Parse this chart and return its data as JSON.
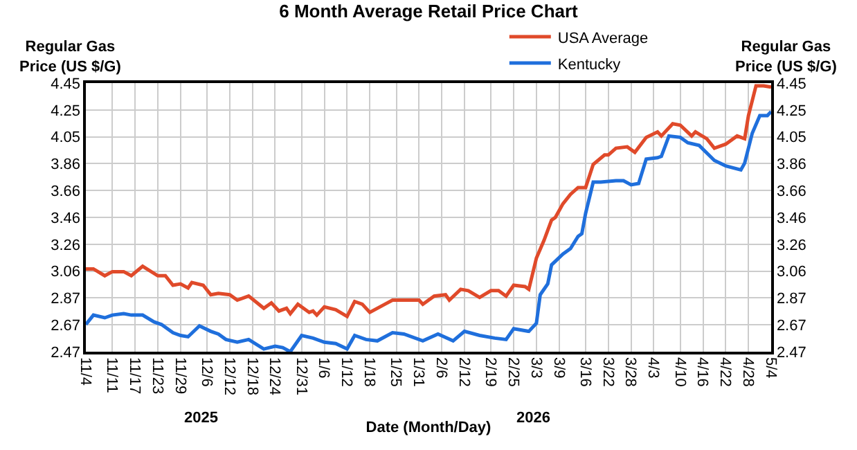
{
  "chart_data": {
    "type": "line",
    "title": "6 Month Average Retail Price Chart",
    "xlabel": "Date (Month/Day)",
    "ylabel": "Regular Gas Price (US $/G)",
    "y2label": "Regular Gas Price (US $/G)",
    "series": [
      {
        "name": "USA Average",
        "color": "#e04a2a",
        "x": [
          "2025-11-04",
          "2025-11-06",
          "2025-11-09",
          "2025-11-11",
          "2025-11-14",
          "2025-11-16",
          "2025-11-19",
          "2025-11-23",
          "2025-11-25",
          "2025-11-27",
          "2025-11-29",
          "2025-12-01",
          "2025-12-02",
          "2025-12-05",
          "2025-12-07",
          "2025-12-09",
          "2025-12-12",
          "2025-12-14",
          "2025-12-17",
          "2025-12-21",
          "2025-12-23",
          "2025-12-25",
          "2025-12-27",
          "2025-12-28",
          "2025-12-30",
          "2026-01-02",
          "2026-01-03",
          "2026-01-04",
          "2026-01-06",
          "2026-01-09",
          "2026-01-12",
          "2026-01-14",
          "2026-01-16",
          "2026-01-18",
          "2026-01-22",
          "2026-01-24",
          "2026-01-27",
          "2026-01-31",
          "2026-02-01",
          "2026-02-04",
          "2026-02-07",
          "2026-02-08",
          "2026-02-11",
          "2026-02-13",
          "2026-02-16",
          "2026-02-19",
          "2026-02-21",
          "2026-02-23",
          "2026-02-25",
          "2026-02-28",
          "2026-03-01",
          "2026-03-03",
          "2026-03-05",
          "2026-03-07",
          "2026-03-08",
          "2026-03-10",
          "2026-03-12",
          "2026-03-14",
          "2026-03-16",
          "2026-03-18",
          "2026-03-21",
          "2026-03-22",
          "2026-03-24",
          "2026-03-27",
          "2026-03-29",
          "2026-04-01",
          "2026-04-04",
          "2026-04-05",
          "2026-04-08",
          "2026-04-10",
          "2026-04-13",
          "2026-04-14",
          "2026-04-17",
          "2026-04-19",
          "2026-04-22",
          "2026-04-25",
          "2026-04-27",
          "2026-04-28",
          "2026-04-30",
          "2026-05-02",
          "2026-05-04"
        ],
        "values": [
          3.08,
          3.08,
          3.03,
          3.06,
          3.06,
          3.03,
          3.1,
          3.03,
          3.03,
          2.96,
          2.97,
          2.94,
          2.98,
          2.96,
          2.89,
          2.9,
          2.89,
          2.85,
          2.88,
          2.79,
          2.83,
          2.77,
          2.79,
          2.75,
          2.82,
          2.76,
          2.77,
          2.74,
          2.8,
          2.78,
          2.73,
          2.84,
          2.82,
          2.76,
          2.82,
          2.85,
          2.85,
          2.85,
          2.82,
          2.88,
          2.89,
          2.85,
          2.93,
          2.92,
          2.87,
          2.92,
          2.92,
          2.88,
          2.96,
          2.95,
          2.93,
          3.16,
          3.29,
          3.44,
          3.46,
          3.56,
          3.63,
          3.68,
          3.68,
          3.85,
          3.92,
          3.92,
          3.97,
          3.98,
          3.94,
          4.05,
          4.09,
          4.06,
          4.15,
          4.14,
          4.06,
          4.09,
          4.04,
          3.97,
          4.0,
          4.06,
          4.04,
          4.21,
          4.43,
          4.43,
          4.42
        ]
      },
      {
        "name": "Kentucky",
        "color": "#1f6fdc",
        "x": [
          "2025-11-04",
          "2025-11-06",
          "2025-11-09",
          "2025-11-11",
          "2025-11-14",
          "2025-11-16",
          "2025-11-19",
          "2025-11-22",
          "2025-11-24",
          "2025-11-27",
          "2025-11-29",
          "2025-12-01",
          "2025-12-04",
          "2025-12-07",
          "2025-12-09",
          "2025-12-11",
          "2025-12-14",
          "2025-12-17",
          "2025-12-21",
          "2025-12-24",
          "2025-12-26",
          "2025-12-28",
          "2025-12-31",
          "2026-01-03",
          "2026-01-06",
          "2026-01-09",
          "2026-01-12",
          "2026-01-14",
          "2026-01-17",
          "2026-01-20",
          "2026-01-24",
          "2026-01-27",
          "2026-02-01",
          "2026-02-05",
          "2026-02-09",
          "2026-02-12",
          "2026-02-16",
          "2026-02-20",
          "2026-02-23",
          "2026-02-25",
          "2026-03-01",
          "2026-03-03",
          "2026-03-04",
          "2026-03-06",
          "2026-03-07",
          "2026-03-10",
          "2026-03-12",
          "2026-03-14",
          "2026-03-15",
          "2026-03-16",
          "2026-03-18",
          "2026-03-20",
          "2026-03-24",
          "2026-03-26",
          "2026-03-28",
          "2026-03-30",
          "2026-04-01",
          "2026-04-04",
          "2026-04-05",
          "2026-04-07",
          "2026-04-10",
          "2026-04-12",
          "2026-04-15",
          "2026-04-19",
          "2026-04-22",
          "2026-04-26",
          "2026-04-27",
          "2026-04-29",
          "2026-05-01",
          "2026-05-03",
          "2026-05-04"
        ],
        "values": [
          2.67,
          2.74,
          2.72,
          2.74,
          2.75,
          2.74,
          2.74,
          2.69,
          2.67,
          2.61,
          2.59,
          2.58,
          2.66,
          2.62,
          2.6,
          2.56,
          2.54,
          2.56,
          2.49,
          2.51,
          2.5,
          2.47,
          2.59,
          2.57,
          2.54,
          2.53,
          2.49,
          2.59,
          2.56,
          2.55,
          2.61,
          2.6,
          2.55,
          2.6,
          2.55,
          2.62,
          2.59,
          2.57,
          2.56,
          2.64,
          2.62,
          2.68,
          2.89,
          2.97,
          3.11,
          3.19,
          3.23,
          3.32,
          3.34,
          3.49,
          3.72,
          3.72,
          3.73,
          3.73,
          3.7,
          3.71,
          3.89,
          3.9,
          3.91,
          4.06,
          4.05,
          4.01,
          3.99,
          3.88,
          3.84,
          3.81,
          3.86,
          4.08,
          4.21,
          4.21,
          4.24
        ]
      }
    ],
    "xlim": [
      "2025-11-04",
      "2026-05-04"
    ],
    "xticks": [
      {
        "value": "2025-11-04",
        "label": "11/4"
      },
      {
        "value": "2025-11-11",
        "label": "11/11"
      },
      {
        "value": "2025-11-17",
        "label": "11/17"
      },
      {
        "value": "2025-11-23",
        "label": "11/23"
      },
      {
        "value": "2025-11-29",
        "label": "11/29"
      },
      {
        "value": "2025-12-06",
        "label": "12/6"
      },
      {
        "value": "2025-12-12",
        "label": "12/12"
      },
      {
        "value": "2025-12-18",
        "label": "12/18"
      },
      {
        "value": "2025-12-24",
        "label": "12/24"
      },
      {
        "value": "2025-12-31",
        "label": "12/31"
      },
      {
        "value": "2026-01-06",
        "label": "1/6"
      },
      {
        "value": "2026-01-12",
        "label": "1/12"
      },
      {
        "value": "2026-01-18",
        "label": "1/18"
      },
      {
        "value": "2026-01-25",
        "label": "1/25"
      },
      {
        "value": "2026-01-31",
        "label": "1/31"
      },
      {
        "value": "2026-02-06",
        "label": "2/6"
      },
      {
        "value": "2026-02-12",
        "label": "2/12"
      },
      {
        "value": "2026-02-19",
        "label": "2/19"
      },
      {
        "value": "2026-02-25",
        "label": "2/25"
      },
      {
        "value": "2026-03-03",
        "label": "3/3"
      },
      {
        "value": "2026-03-09",
        "label": "3/9"
      },
      {
        "value": "2026-03-16",
        "label": "3/16"
      },
      {
        "value": "2026-03-22",
        "label": "3/22"
      },
      {
        "value": "2026-03-28",
        "label": "3/28"
      },
      {
        "value": "2026-04-03",
        "label": "4/3"
      },
      {
        "value": "2026-04-10",
        "label": "4/10"
      },
      {
        "value": "2026-04-16",
        "label": "4/16"
      },
      {
        "value": "2026-04-22",
        "label": "4/22"
      },
      {
        "value": "2026-04-28",
        "label": "4/28"
      },
      {
        "value": "2026-05-04",
        "label": "5/4"
      }
    ],
    "ylim": [
      2.47,
      4.45
    ],
    "yticks": [
      {
        "value": 2.47,
        "label": "2.47"
      },
      {
        "value": 2.668,
        "label": "2.67"
      },
      {
        "value": 2.866,
        "label": "2.87"
      },
      {
        "value": 3.064,
        "label": "3.06"
      },
      {
        "value": 3.262,
        "label": "3.26"
      },
      {
        "value": 3.46,
        "label": "3.46"
      },
      {
        "value": 3.658,
        "label": "3.66"
      },
      {
        "value": 3.856,
        "label": "3.86"
      },
      {
        "value": 4.054,
        "label": "4.05"
      },
      {
        "value": 4.252,
        "label": "4.25"
      },
      {
        "value": 4.45,
        "label": "4.45"
      }
    ],
    "y2lim": [
      2.47,
      4.45
    ],
    "y2ticks": [
      {
        "value": 2.47,
        "label": "2.47"
      },
      {
        "value": 2.668,
        "label": "2.67"
      },
      {
        "value": 2.866,
        "label": "2.87"
      },
      {
        "value": 3.064,
        "label": "3.06"
      },
      {
        "value": 3.262,
        "label": "3.26"
      },
      {
        "value": 3.46,
        "label": "3.46"
      },
      {
        "value": 3.658,
        "label": "3.66"
      },
      {
        "value": 3.856,
        "label": "3.86"
      },
      {
        "value": 4.054,
        "label": "4.05"
      },
      {
        "value": 4.252,
        "label": "4.25"
      },
      {
        "value": 4.45,
        "label": "4.45"
      }
    ],
    "annotations": [
      "2025",
      "2026"
    ],
    "grid": true,
    "legend": "top",
    "marker": "none",
    "line_style": "solid"
  }
}
